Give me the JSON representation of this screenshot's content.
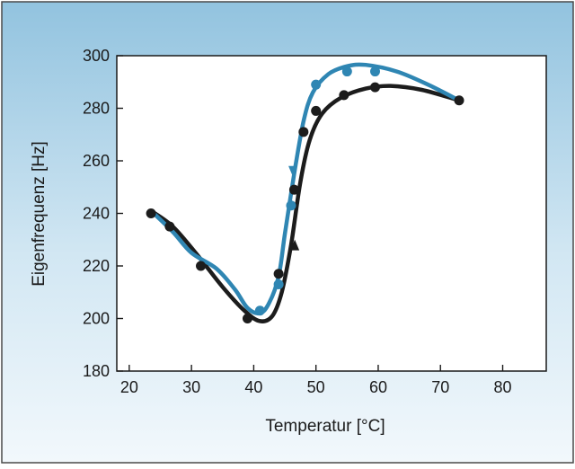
{
  "chart_data": {
    "type": "line",
    "title": "",
    "xlabel": "Temperatur [°C]",
    "ylabel": "Eigenfrequenz [Hz]",
    "xlim": [
      18,
      87
    ],
    "ylim": [
      180,
      300
    ],
    "x_ticks": [
      20,
      30,
      40,
      50,
      60,
      70,
      80
    ],
    "y_ticks": [
      180,
      200,
      220,
      240,
      260,
      280,
      300
    ],
    "grid": false,
    "legend": "none",
    "series": [
      {
        "color": "#2f86b3",
        "direction": "cooling",
        "points": [
          {
            "x": 41,
            "y": 203
          },
          {
            "x": 44,
            "y": 213
          },
          {
            "x": 46,
            "y": 243
          },
          {
            "x": 50,
            "y": 289
          },
          {
            "x": 55,
            "y": 294
          },
          {
            "x": 59.5,
            "y": 294
          }
        ],
        "curve": [
          [
            73,
            283
          ],
          [
            68,
            289
          ],
          [
            63,
            294
          ],
          [
            58,
            296.5
          ],
          [
            55,
            296
          ],
          [
            52,
            293
          ],
          [
            49.5,
            286
          ],
          [
            48,
            275
          ],
          [
            46.5,
            255
          ],
          [
            45,
            232
          ],
          [
            44,
            216
          ],
          [
            42.5,
            206
          ],
          [
            41,
            202
          ],
          [
            39,
            204
          ],
          [
            37,
            211
          ],
          [
            34,
            219
          ],
          [
            30,
            225
          ],
          [
            27,
            233
          ],
          [
            23.5,
            241
          ]
        ]
      },
      {
        "color": "#1c1c1c",
        "direction": "heating",
        "points": [
          {
            "x": 23.5,
            "y": 240
          },
          {
            "x": 26.5,
            "y": 235
          },
          {
            "x": 31.5,
            "y": 220
          },
          {
            "x": 39,
            "y": 200
          },
          {
            "x": 44,
            "y": 217
          },
          {
            "x": 46.5,
            "y": 249
          },
          {
            "x": 48,
            "y": 271
          },
          {
            "x": 50,
            "y": 279
          },
          {
            "x": 54.5,
            "y": 285
          },
          {
            "x": 59.5,
            "y": 288
          },
          {
            "x": 73,
            "y": 283
          }
        ],
        "curve": [
          [
            23.5,
            241
          ],
          [
            27,
            235
          ],
          [
            31,
            224
          ],
          [
            35,
            212
          ],
          [
            38.5,
            203
          ],
          [
            41,
            199
          ],
          [
            43,
            201
          ],
          [
            44.5,
            210
          ],
          [
            46,
            228
          ],
          [
            47.5,
            252
          ],
          [
            49,
            268
          ],
          [
            51,
            278
          ],
          [
            54,
            284
          ],
          [
            58,
            287.5
          ],
          [
            62,
            288.5
          ],
          [
            67,
            287
          ],
          [
            73,
            283
          ]
        ]
      }
    ],
    "annotations": [
      {
        "type": "arrow",
        "series": 0,
        "x": 46.3,
        "y": 256,
        "direction": "down"
      },
      {
        "type": "arrow",
        "series": 1,
        "x": 46.6,
        "y": 228,
        "direction": "up"
      }
    ]
  }
}
